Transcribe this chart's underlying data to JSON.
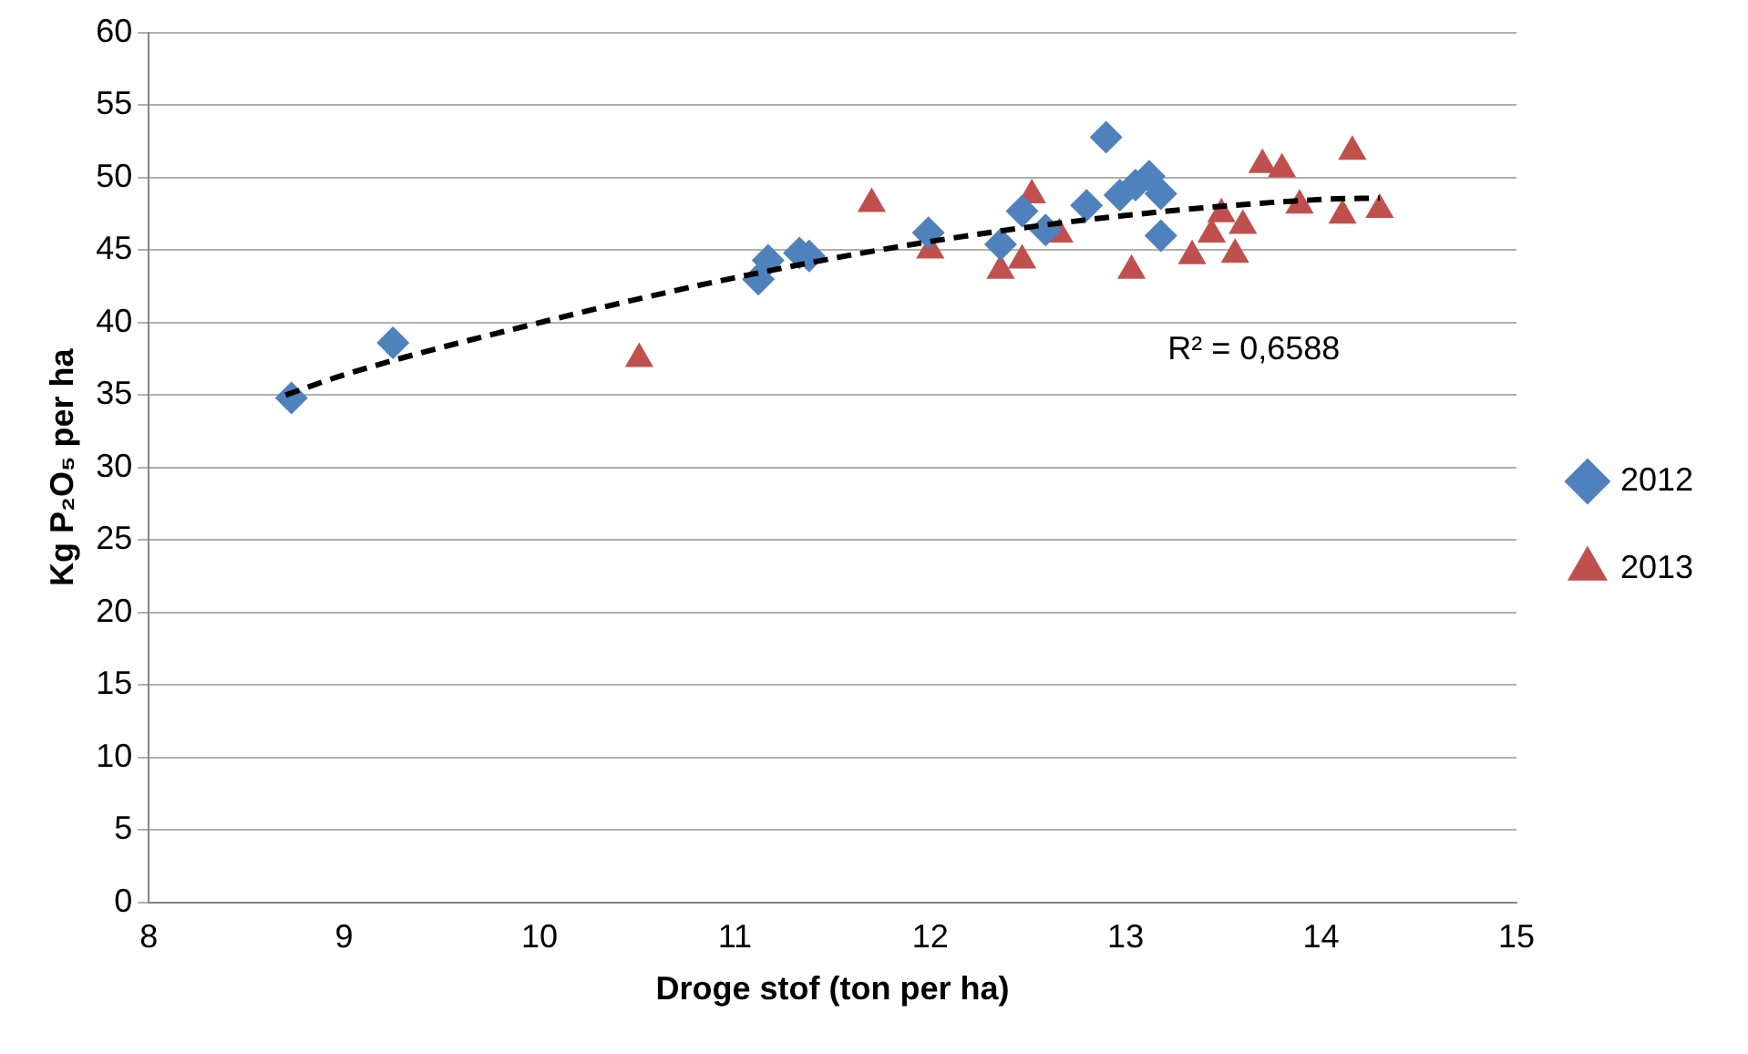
{
  "chart_data": {
    "type": "scatter",
    "xlabel": "Droge stof (ton per ha)",
    "ylabel": "Kg P₂O₅ per ha",
    "xlim": [
      8,
      15
    ],
    "xticks": [
      8,
      9,
      10,
      11,
      12,
      13,
      14,
      15
    ],
    "ylim": [
      0,
      60
    ],
    "yticks": [
      0,
      5,
      10,
      15,
      20,
      25,
      30,
      35,
      40,
      45,
      50,
      55,
      60
    ],
    "grid": "y",
    "legend": "right",
    "annotations": [
      "R² = 0,6588"
    ],
    "series": [
      {
        "name": "2012",
        "color": "#4f81bd",
        "marker": "diamond",
        "x": [
          8.73,
          9.25,
          11.12,
          11.17,
          11.33,
          11.38,
          11.99,
          12.36,
          12.47,
          12.59,
          12.9,
          12.8,
          12.97,
          13.12,
          13.18,
          13.05,
          13.18
        ],
        "values": [
          34.8,
          38.6,
          43.0,
          44.3,
          44.8,
          44.6,
          46.2,
          45.4,
          47.7,
          46.4,
          52.8,
          48.1,
          48.8,
          50.1,
          48.9,
          49.5,
          46.0
        ]
      },
      {
        "name": "2013",
        "color": "#c0504d",
        "marker": "triangle",
        "x": [
          10.51,
          11.7,
          12.0,
          12.36,
          12.47,
          12.52,
          12.66,
          13.03,
          13.34,
          13.49,
          13.56,
          13.44,
          13.7,
          13.8,
          13.89,
          13.6,
          14.11,
          14.16,
          14.3
        ],
        "values": [
          37.5,
          48.2,
          45.0,
          43.6,
          44.3,
          48.8,
          46.1,
          43.6,
          44.6,
          47.5,
          44.7,
          46.1,
          50.9,
          50.6,
          48.1,
          46.7,
          47.4,
          51.8,
          47.8
        ]
      },
      {
        "type": "line",
        "color": "#000000",
        "line_style": "dashed",
        "marker": "none",
        "x": [
          8.7,
          9,
          10,
          11,
          12,
          13,
          14,
          14.3
        ],
        "values": [
          35.0,
          36.4,
          40.0,
          43.1,
          45.6,
          47.4,
          48.5,
          48.6
        ]
      }
    ]
  }
}
